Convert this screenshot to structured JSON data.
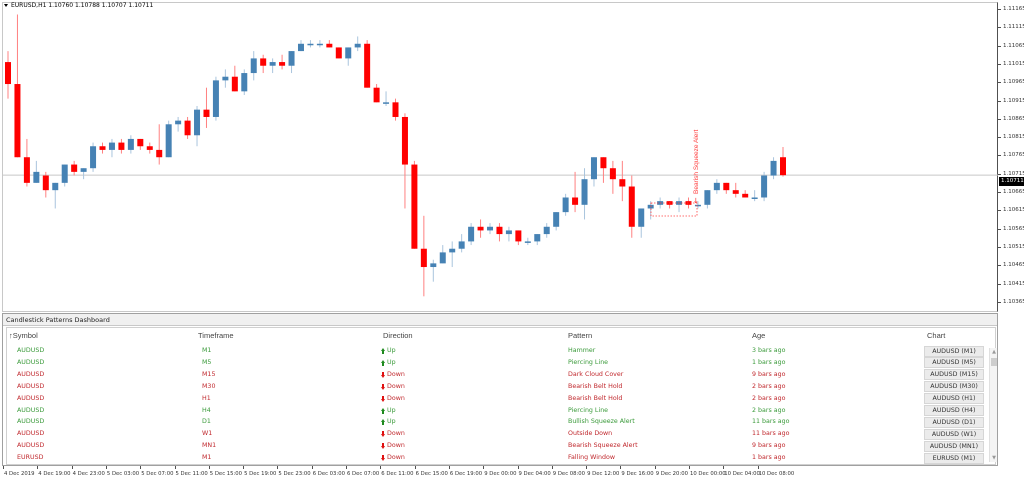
{
  "chart": {
    "title": "EURUSD,H1  1.10760 1.10788 1.10707 1.10711",
    "symbol": "EURUSD,H1",
    "ohlc": {
      "open": "1.10760",
      "high": "1.10788",
      "low": "1.10707",
      "close": "1.10711"
    },
    "current_price": "1.10711",
    "y_axis_labels": [
      "1.11165",
      "1.11115",
      "1.11065",
      "1.11015",
      "1.10965",
      "1.10915",
      "1.10865",
      "1.10815",
      "1.10765",
      "1.10715",
      "1.10665",
      "1.10615",
      "1.10565",
      "1.10515",
      "1.10465",
      "1.10415",
      "1.10365"
    ],
    "x_axis_labels": [
      "4 Dec 2019",
      "4 Dec 19:00",
      "4 Dec 23:00",
      "5 Dec 03:00",
      "5 Dec 07:00",
      "5 Dec 11:00",
      "5 Dec 15:00",
      "5 Dec 19:00",
      "5 Dec 23:00",
      "6 Dec 03:00",
      "6 Dec 07:00",
      "6 Dec 11:00",
      "6 Dec 15:00",
      "6 Dec 19:00",
      "9 Dec 00:00",
      "9 Dec 04:00",
      "9 Dec 08:00",
      "9 Dec 12:00",
      "9 Dec 16:00",
      "9 Dec 20:00",
      "10 Dec 00:00",
      "10 Dec 04:00",
      "10 Dec 08:00"
    ],
    "annotation": "Bearish Squeeze Alert",
    "colors": {
      "bull": "#4682b4",
      "bear": "#ff0000",
      "bull_wick": "#a9c4dd",
      "bear_wick": "#ff8080",
      "price_line": "#c8c8c8"
    }
  },
  "chart_data": {
    "type": "candlestick",
    "title": "EURUSD,H1",
    "ylim": [
      1.1034,
      1.1119
    ],
    "candles": [
      [
        1.1102,
        1.1105,
        1.1092,
        1.1096
      ],
      [
        1.1096,
        1.1115,
        1.1078,
        1.1076
      ],
      [
        1.1076,
        1.1081,
        1.1068,
        1.1069
      ],
      [
        1.1069,
        1.1075,
        1.107,
        1.1072
      ],
      [
        1.1071,
        1.1072,
        1.1065,
        1.1067
      ],
      [
        1.1067,
        1.1069,
        1.1062,
        1.1069
      ],
      [
        1.1069,
        1.1074,
        1.1068,
        1.1074
      ],
      [
        1.1074,
        1.1075,
        1.1071,
        1.1072
      ],
      [
        1.1072,
        1.1073,
        1.107,
        1.1073
      ],
      [
        1.1073,
        1.108,
        1.1072,
        1.1079
      ],
      [
        1.1079,
        1.108,
        1.1077,
        1.1078
      ],
      [
        1.1078,
        1.1081,
        1.1076,
        1.108
      ],
      [
        1.108,
        1.1081,
        1.1077,
        1.1078
      ],
      [
        1.1078,
        1.1082,
        1.1077,
        1.1081
      ],
      [
        1.1081,
        1.1081,
        1.1078,
        1.1079
      ],
      [
        1.1079,
        1.108,
        1.1077,
        1.1078
      ],
      [
        1.1078,
        1.1085,
        1.1074,
        1.1076
      ],
      [
        1.1076,
        1.1086,
        1.1076,
        1.1085
      ],
      [
        1.1085,
        1.1087,
        1.1083,
        1.1086
      ],
      [
        1.1086,
        1.1087,
        1.1081,
        1.1082
      ],
      [
        1.1082,
        1.109,
        1.1079,
        1.1089
      ],
      [
        1.1089,
        1.1095,
        1.1084,
        1.1087
      ],
      [
        1.1087,
        1.1098,
        1.1086,
        1.1097
      ],
      [
        1.1097,
        1.11,
        1.1095,
        1.1098
      ],
      [
        1.1098,
        1.1101,
        1.1094,
        1.1094
      ],
      [
        1.1094,
        1.11,
        1.1093,
        1.1099
      ],
      [
        1.1099,
        1.1105,
        1.1097,
        1.1103
      ],
      [
        1.1103,
        1.1104,
        1.1099,
        1.1101
      ],
      [
        1.1101,
        1.1103,
        1.1099,
        1.1102
      ],
      [
        1.1102,
        1.1104,
        1.11,
        1.1101
      ],
      [
        1.1101,
        1.1105,
        1.1099,
        1.1105
      ],
      [
        1.1105,
        1.1108,
        1.1105,
        1.1107
      ],
      [
        1.1107,
        1.1108,
        1.1106,
        1.1107
      ],
      [
        1.1107,
        1.1108,
        1.1106,
        1.1107
      ],
      [
        1.1107,
        1.1108,
        1.1106,
        1.1106
      ],
      [
        1.1106,
        1.1105,
        1.1105,
        1.1103
      ],
      [
        1.1103,
        1.1106,
        1.1101,
        1.1106
      ],
      [
        1.1106,
        1.1109,
        1.1105,
        1.1107
      ],
      [
        1.1107,
        1.1108,
        1.1095,
        1.1095
      ],
      [
        1.1095,
        1.1096,
        1.1091,
        1.1091
      ],
      [
        1.1091,
        1.1094,
        1.109,
        1.1091
      ],
      [
        1.1091,
        1.1092,
        1.1086,
        1.1087
      ],
      [
        1.1087,
        1.1088,
        1.1062,
        1.1074
      ],
      [
        1.1074,
        1.1075,
        1.1051,
        1.1051
      ],
      [
        1.1051,
        1.106,
        1.1038,
        1.1046
      ],
      [
        1.1046,
        1.1048,
        1.1042,
        1.1047
      ],
      [
        1.1047,
        1.1052,
        1.1047,
        1.105
      ],
      [
        1.105,
        1.1053,
        1.1046,
        1.1051
      ],
      [
        1.1051,
        1.1055,
        1.105,
        1.1053
      ],
      [
        1.1053,
        1.1058,
        1.1052,
        1.1057
      ],
      [
        1.1057,
        1.1059,
        1.1054,
        1.1056
      ],
      [
        1.1056,
        1.1058,
        1.1055,
        1.1057
      ],
      [
        1.1057,
        1.1058,
        1.1053,
        1.1055
      ],
      [
        1.1055,
        1.1057,
        1.1053,
        1.1056
      ],
      [
        1.1056,
        1.1056,
        1.1052,
        1.1053
      ],
      [
        1.1053,
        1.1054,
        1.1052,
        1.1053
      ],
      [
        1.1053,
        1.1055,
        1.1052,
        1.1055
      ],
      [
        1.1055,
        1.1058,
        1.1054,
        1.1057
      ],
      [
        1.1057,
        1.1061,
        1.1056,
        1.1061
      ],
      [
        1.1061,
        1.1066,
        1.106,
        1.1065
      ],
      [
        1.1065,
        1.1072,
        1.1061,
        1.1063
      ],
      [
        1.1063,
        1.1073,
        1.1059,
        1.107
      ],
      [
        1.107,
        1.1074,
        1.1068,
        1.1076
      ],
      [
        1.1076,
        1.1076,
        1.1069,
        1.1073
      ],
      [
        1.1073,
        1.1075,
        1.1066,
        1.107
      ],
      [
        1.107,
        1.1075,
        1.1064,
        1.1068
      ],
      [
        1.1068,
        1.1071,
        1.1054,
        1.1057
      ],
      [
        1.1057,
        1.1062,
        1.1054,
        1.1062
      ],
      [
        1.1062,
        1.1064,
        1.1059,
        1.1063
      ],
      [
        1.1063,
        1.1065,
        1.1062,
        1.1064
      ],
      [
        1.1064,
        1.1064,
        1.1062,
        1.1063
      ],
      [
        1.1063,
        1.1065,
        1.1061,
        1.1064
      ],
      [
        1.1064,
        1.1065,
        1.1062,
        1.1063
      ],
      [
        1.1063,
        1.1064,
        1.1062,
        1.1063
      ],
      [
        1.1063,
        1.1067,
        1.1062,
        1.1067
      ],
      [
        1.1067,
        1.107,
        1.1066,
        1.1069
      ],
      [
        1.1069,
        1.1069,
        1.1066,
        1.1067
      ],
      [
        1.1067,
        1.1069,
        1.1065,
        1.1066
      ],
      [
        1.1066,
        1.1067,
        1.1065,
        1.1065
      ],
      [
        1.1065,
        1.1067,
        1.1064,
        1.1065
      ],
      [
        1.1065,
        1.1072,
        1.1064,
        1.1071
      ],
      [
        1.1071,
        1.1076,
        1.107,
        1.1075
      ],
      [
        1.1076,
        1.10788,
        1.10707,
        1.10711
      ]
    ]
  },
  "dashboard": {
    "title": "Candlestick Patterns Dashboard",
    "columns": [
      "Symbol",
      "Timeframe",
      "Direction",
      "Pattern",
      "Age",
      "Chart"
    ],
    "sort_indicator": "↑",
    "rows": [
      {
        "symbol": "AUDUSD",
        "timeframe": "M1",
        "direction": "Up",
        "pattern": "Hammer",
        "age": "3 bars ago",
        "chart": "AUDUSD (M1)"
      },
      {
        "symbol": "AUDUSD",
        "timeframe": "M5",
        "direction": "Up",
        "pattern": "Piercing Line",
        "age": "1 bars ago",
        "chart": "AUDUSD (M5)"
      },
      {
        "symbol": "AUDUSD",
        "timeframe": "M15",
        "direction": "Down",
        "pattern": "Dark Cloud Cover",
        "age": "9 bars ago",
        "chart": "AUDUSD (M15)"
      },
      {
        "symbol": "AUDUSD",
        "timeframe": "M30",
        "direction": "Down",
        "pattern": "Bearish Belt Hold",
        "age": "2 bars ago",
        "chart": "AUDUSD (M30)"
      },
      {
        "symbol": "AUDUSD",
        "timeframe": "H1",
        "direction": "Down",
        "pattern": "Bearish Belt Hold",
        "age": "2 bars ago",
        "chart": "AUDUSD (H1)"
      },
      {
        "symbol": "AUDUSD",
        "timeframe": "H4",
        "direction": "Up",
        "pattern": "Piercing Line",
        "age": "2 bars ago",
        "chart": "AUDUSD (H4)"
      },
      {
        "symbol": "AUDUSD",
        "timeframe": "D1",
        "direction": "Up",
        "pattern": "Bullish Squeeze Alert",
        "age": "11 bars ago",
        "chart": "AUDUSD (D1)"
      },
      {
        "symbol": "AUDUSD",
        "timeframe": "W1",
        "direction": "Down",
        "pattern": "Outside Down",
        "age": "11 bars ago",
        "chart": "AUDUSD (W1)"
      },
      {
        "symbol": "AUDUSD",
        "timeframe": "MN1",
        "direction": "Down",
        "pattern": "Bearish Squeeze Alert",
        "age": "9 bars ago",
        "chart": "AUDUSD (MN1)"
      },
      {
        "symbol": "EURUSD",
        "timeframe": "M1",
        "direction": "Down",
        "pattern": "Falling Window",
        "age": "1 bars ago",
        "chart": "EURUSD (M1)"
      }
    ]
  }
}
